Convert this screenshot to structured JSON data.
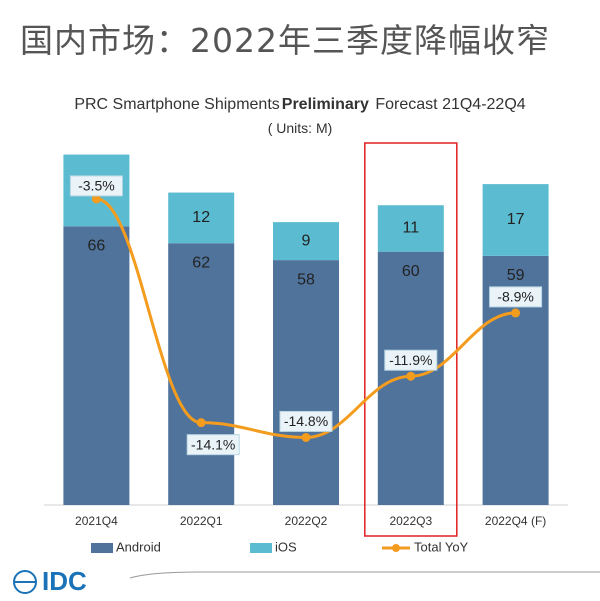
{
  "page_title": "国内市场：2022年三季度降幅收窄",
  "logo": "IDC",
  "chart_data": {
    "type": "stacked-bar-line",
    "title_parts": [
      "PRC Smartphone Shipments",
      "Preliminary",
      "Forecast 21Q4-22Q4"
    ],
    "subtitle": "( Units: M)",
    "categories": [
      "2021Q4",
      "2022Q1",
      "2022Q2",
      "2022Q3",
      "2022Q4 (F)"
    ],
    "series": [
      {
        "name": "Android",
        "color": "#50739c",
        "values": [
          66,
          62,
          58,
          60,
          59
        ]
      },
      {
        "name": "iOS",
        "color": "#5bbcd1",
        "values": [
          17,
          12,
          9,
          11,
          17
        ]
      },
      {
        "name": "Total YoY",
        "color": "#f39c1e",
        "axis": "y2",
        "values": [
          -3.5,
          -14.1,
          -14.8,
          -11.9,
          -8.9
        ],
        "value_labels": [
          "-3.5%",
          "-14.1%",
          "-14.8%",
          "-11.9%",
          "-8.9%"
        ]
      }
    ],
    "ylim": [
      0,
      90
    ],
    "y2lim": [
      -18,
      0
    ],
    "grid": false,
    "legend": "bottom",
    "highlight_category": 3
  }
}
